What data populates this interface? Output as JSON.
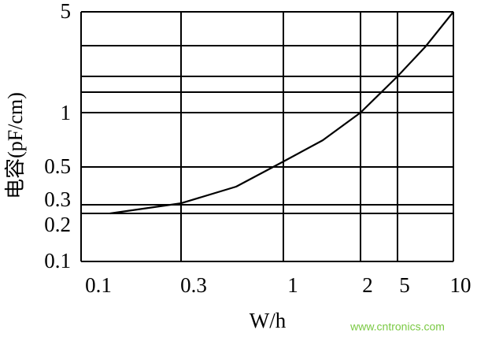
{
  "chart_data": {
    "type": "line",
    "xlabel": "W/h",
    "ylabel": "电容(pF/cm)",
    "watermark": "www.cntronics.com",
    "xlim": [
      0.1,
      10
    ],
    "xticks": [
      0.1,
      0.3,
      1,
      2,
      5,
      10
    ],
    "ylim": [
      0.1,
      5
    ],
    "yticks": [
      0.1,
      0.2,
      0.3,
      0.5,
      1,
      5
    ],
    "minor_grid_y": [
      1.5,
      2,
      3
    ],
    "grid": true,
    "color": "#000000",
    "x": [
      0.158,
      0.3,
      0.677,
      1,
      1.51,
      2,
      5,
      7.46,
      10
    ],
    "values": [
      0.2,
      0.308,
      0.396,
      0.55,
      0.746,
      1,
      2,
      2.95,
      5
    ]
  }
}
